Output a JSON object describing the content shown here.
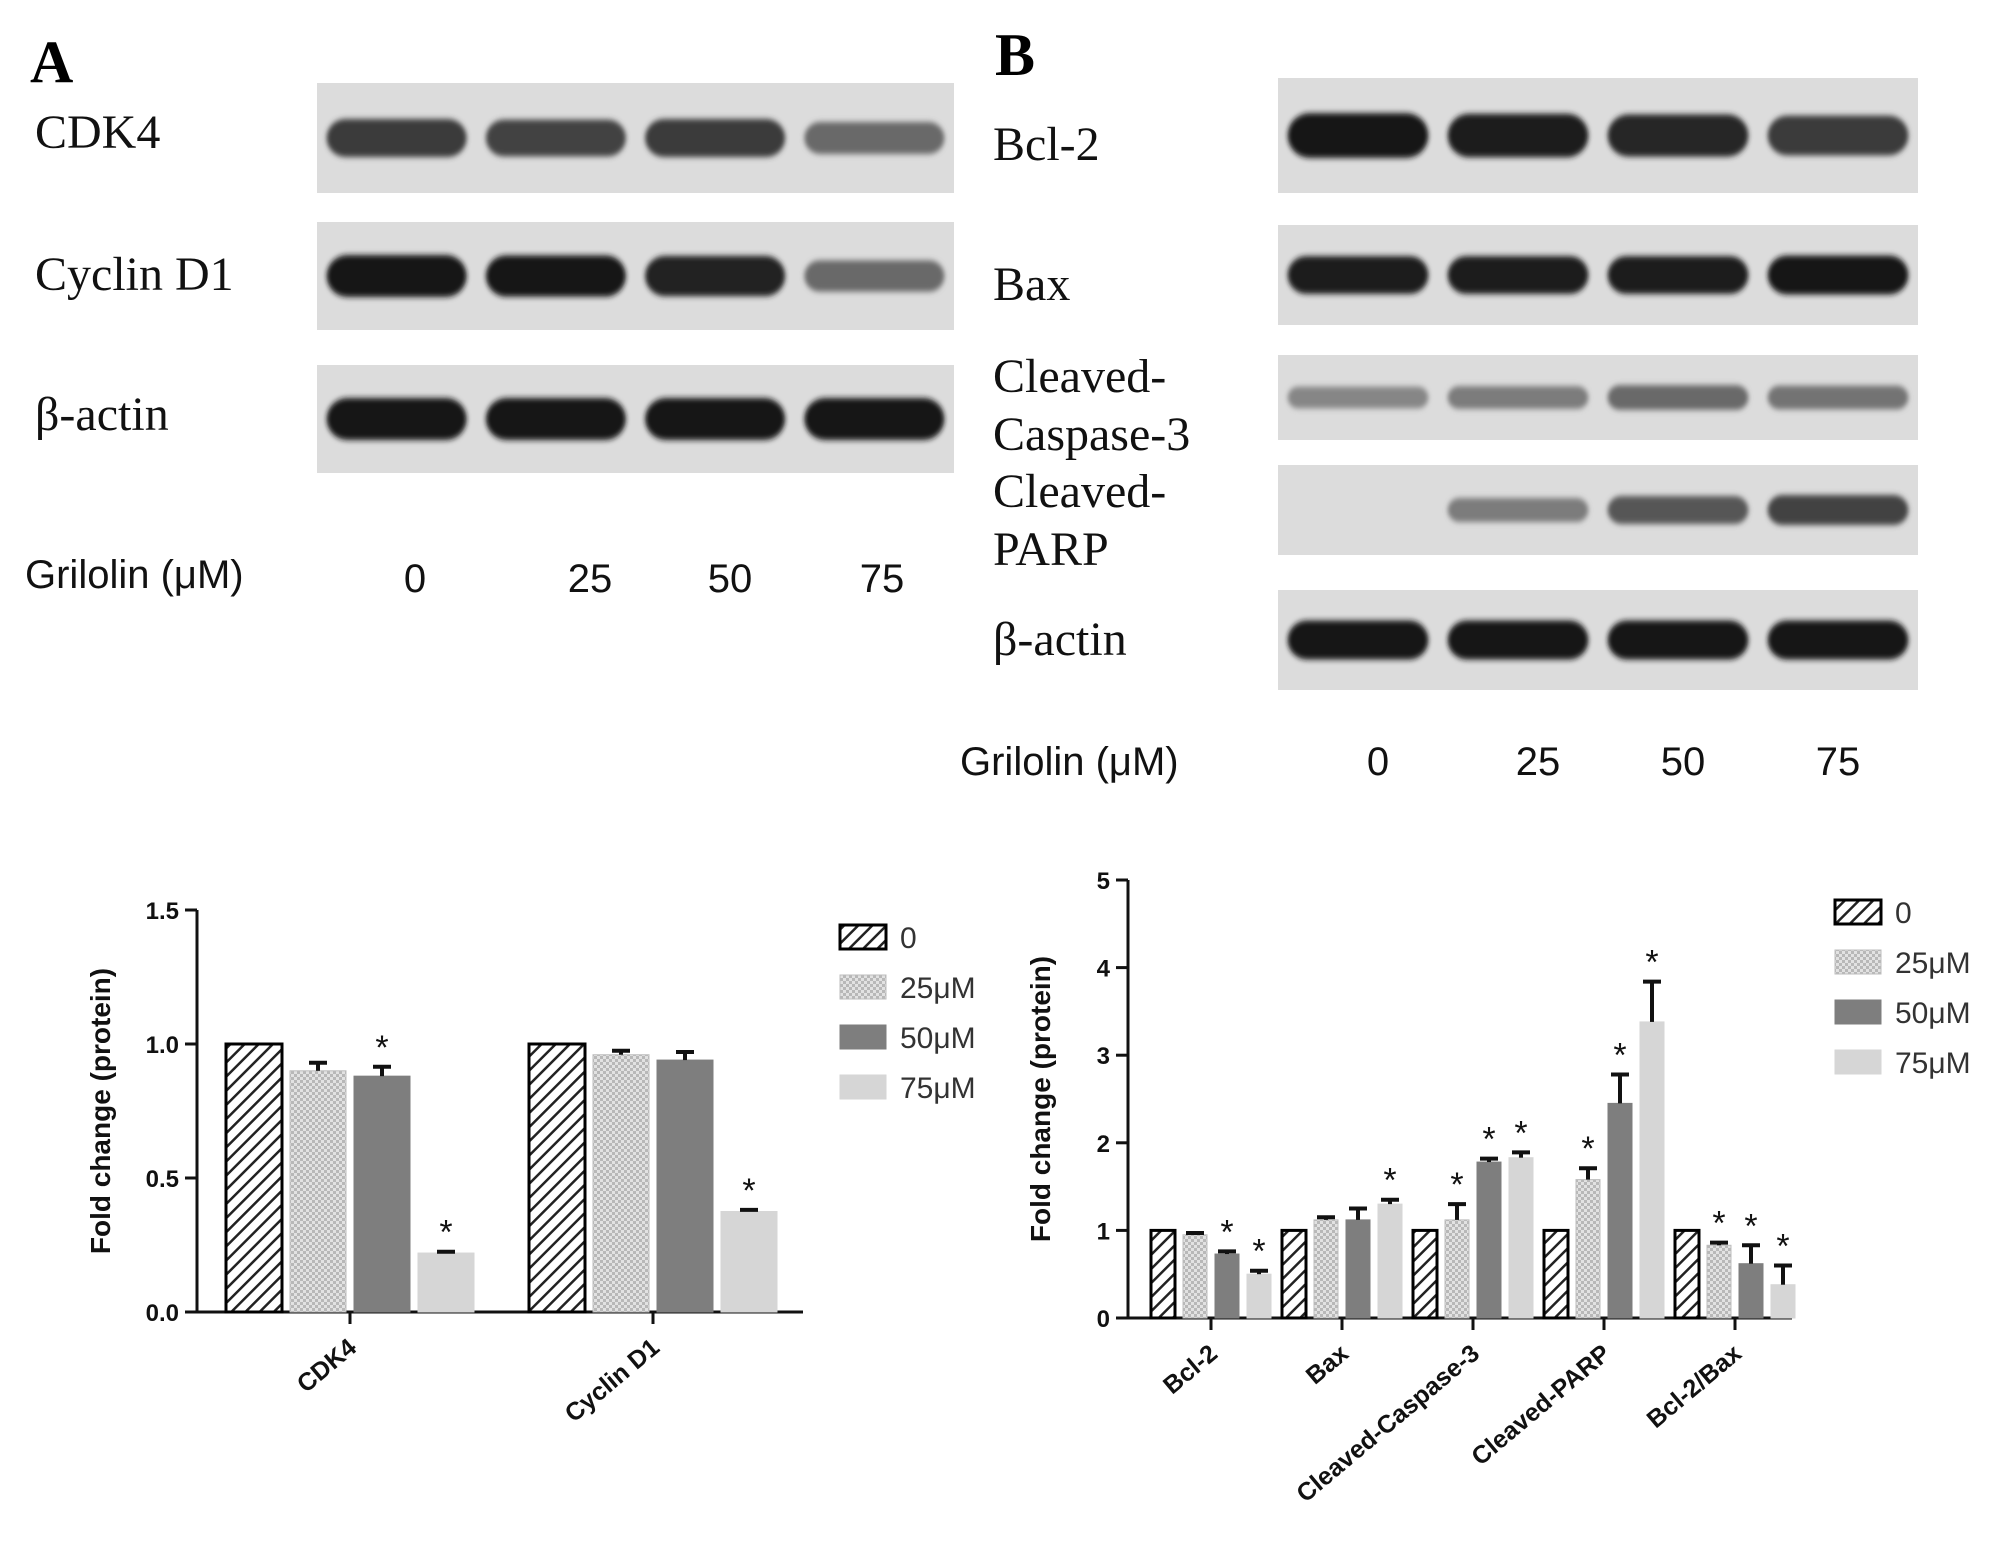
{
  "panel_a": {
    "letter": "A",
    "blots": [
      {
        "label": "CDK4",
        "intensities": [
          0.75,
          0.7,
          0.75,
          0.5
        ]
      },
      {
        "label": "Cyclin D1",
        "intensities": [
          0.95,
          0.92,
          0.88,
          0.5
        ]
      },
      {
        "label": "β-actin",
        "intensities": [
          0.95,
          0.95,
          0.95,
          0.95
        ]
      }
    ],
    "treatment_label": "Grilolin (μM)",
    "concentrations": [
      "0",
      "25",
      "50",
      "75"
    ]
  },
  "panel_b": {
    "letter": "B",
    "blots": [
      {
        "label": "Bcl-2",
        "intensities": [
          0.95,
          0.9,
          0.85,
          0.75
        ]
      },
      {
        "label": "Bax",
        "intensities": [
          0.9,
          0.9,
          0.9,
          0.95
        ]
      },
      {
        "label": "Cleaved-\nCaspase-3",
        "intensities": [
          0.35,
          0.4,
          0.5,
          0.45
        ]
      },
      {
        "label": "Cleaved-\nPARP",
        "intensities": [
          0.0,
          0.4,
          0.6,
          0.7
        ]
      },
      {
        "label": "β-actin",
        "intensities": [
          0.95,
          0.95,
          0.95,
          0.95
        ]
      }
    ],
    "treatment_label": "Grilolin (μM)",
    "concentrations": [
      "0",
      "25",
      "50",
      "75"
    ]
  },
  "chart_data": [
    {
      "type": "bar",
      "categories": [
        "CDK4",
        "Cyclin D1"
      ],
      "ylabel": "Fold change (protein)",
      "ylim": [
        0,
        1.5
      ],
      "yticks": [
        "0.0",
        "0.5",
        "1.0",
        "1.5"
      ],
      "series": [
        {
          "name": "0",
          "values": [
            1.0,
            1.0
          ],
          "errors": [
            0,
            0
          ],
          "significant": [
            false,
            false
          ]
        },
        {
          "name": "25μM",
          "values": [
            0.9,
            0.96
          ],
          "errors": [
            0.03,
            0.015
          ],
          "significant": [
            false,
            false
          ]
        },
        {
          "name": "50μM",
          "values": [
            0.88,
            0.94
          ],
          "errors": [
            0.035,
            0.03
          ],
          "significant": [
            true,
            false
          ]
        },
        {
          "name": "75μM",
          "values": [
            0.22,
            0.375
          ],
          "errors": [
            0.005,
            0.006
          ],
          "significant": [
            true,
            true
          ]
        }
      ],
      "legend_position": "right",
      "grid": false
    },
    {
      "type": "bar",
      "categories": [
        "Bcl-2",
        "Bax",
        "Cleaved-Caspase-3",
        "Cleaved-PARP",
        "Bcl-2/Bax"
      ],
      "ylabel": "Fold change (protein)",
      "ylim": [
        0,
        5
      ],
      "yticks": [
        "0",
        "1",
        "2",
        "3",
        "4",
        "5"
      ],
      "series": [
        {
          "name": "0",
          "values": [
            1.0,
            1.0,
            1.0,
            1.0,
            1.0
          ],
          "errors": [
            0,
            0,
            0,
            0,
            0
          ],
          "significant": [
            false,
            false,
            false,
            false,
            false
          ]
        },
        {
          "name": "25μM",
          "values": [
            0.95,
            1.12,
            1.12,
            1.58,
            0.83
          ],
          "errors": [
            0.02,
            0.03,
            0.18,
            0.13,
            0.03
          ],
          "significant": [
            false,
            false,
            true,
            true,
            true
          ]
        },
        {
          "name": "50μM",
          "values": [
            0.73,
            1.12,
            1.78,
            2.45,
            0.62
          ],
          "errors": [
            0.03,
            0.13,
            0.04,
            0.33,
            0.21
          ],
          "significant": [
            true,
            false,
            true,
            true,
            true
          ]
        },
        {
          "name": "75μM",
          "values": [
            0.5,
            1.3,
            1.83,
            3.38,
            0.38
          ],
          "errors": [
            0.04,
            0.05,
            0.06,
            0.46,
            0.22
          ],
          "significant": [
            true,
            true,
            true,
            true,
            true
          ]
        }
      ],
      "legend_position": "right",
      "grid": false
    }
  ],
  "significance_marker": "*"
}
